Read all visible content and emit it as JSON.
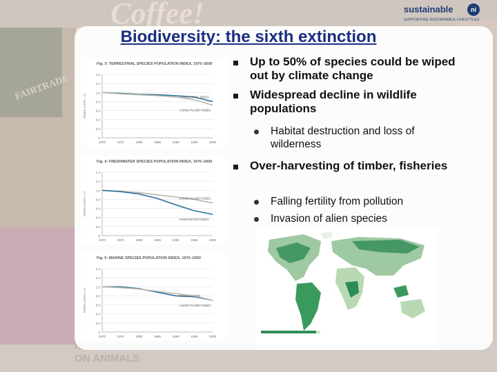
{
  "title": "Biodiversity: the sixth extinction",
  "logo": {
    "name": "sustainable",
    "mark": "ni",
    "tagline": "SUPPORTING SUSTAINABLE LIFESTYLES"
  },
  "background_words": {
    "coffee": "Coffee!",
    "fairtrade": "FAIRTRADE",
    "notested_1": "NOT TESTED",
    "notested_2": "ON ANIMALS"
  },
  "bullets": [
    {
      "level": 1,
      "text": "Up to 50% of species could be wiped out by climate change"
    },
    {
      "level": 1,
      "text": "Widespread decline in wildlife populations"
    },
    {
      "level": 2,
      "text": "Habitat destruction and loss of wilderness"
    },
    {
      "level": 1,
      "text": "Over-harvesting of timber, fisheries"
    },
    {
      "level": 2,
      "text": "Falling fertility from pollution"
    },
    {
      "level": 2,
      "text": "Invasion of alien species"
    }
  ],
  "chart_data": [
    {
      "type": "line",
      "title": "Fig. 3: TERRESTRIAL SPECIES POPULATION INDEX, 1970–2000",
      "ylabel": "INDEX (1970 = 1)",
      "ylim": [
        0,
        1.4
      ],
      "yticks": [
        "0",
        "0.2",
        "0.4",
        "0.6",
        "0.8",
        "1.0",
        "1.2",
        "1.4"
      ],
      "xticks": [
        "1970",
        "1975",
        "1980",
        "1985",
        "1990",
        "1995",
        "2000"
      ],
      "series": [
        {
          "name": "TERRESTRIAL INDEX",
          "color": "#2a6f9e",
          "x": [
            1970,
            1975,
            1980,
            1985,
            1990,
            1995,
            2000
          ],
          "y": [
            1.0,
            0.98,
            0.96,
            0.95,
            0.93,
            0.9,
            0.8
          ]
        },
        {
          "name": "LIVING PLANET INDEX",
          "color": "#b9b6a8",
          "x": [
            1970,
            1975,
            1980,
            1985,
            1990,
            1995,
            2000
          ],
          "y": [
            1.0,
            0.97,
            0.95,
            0.93,
            0.9,
            0.84,
            0.72
          ]
        }
      ]
    },
    {
      "type": "line",
      "title": "Fig. 4: FRESHWATER SPECIES POPULATION INDEX, 1970–2000",
      "ylabel": "INDEX (1970 = 1)",
      "ylim": [
        0,
        1.4
      ],
      "yticks": [
        "0",
        "0.2",
        "0.4",
        "0.6",
        "0.8",
        "1.0",
        "1.2",
        "1.4"
      ],
      "xticks": [
        "1970",
        "1975",
        "1980",
        "1985",
        "1990",
        "1995",
        "2000"
      ],
      "series": [
        {
          "name": "LIVING PLANET INDEX",
          "color": "#b9b6a8",
          "x": [
            1970,
            1975,
            1980,
            1985,
            1990,
            1995,
            2000
          ],
          "y": [
            1.0,
            0.98,
            0.95,
            0.9,
            0.85,
            0.8,
            0.72
          ]
        },
        {
          "name": "FRESHWATER INDEX",
          "color": "#2a6f9e",
          "x": [
            1970,
            1975,
            1980,
            1985,
            1990,
            1995,
            2000
          ],
          "y": [
            1.0,
            0.97,
            0.92,
            0.82,
            0.68,
            0.55,
            0.47
          ]
        }
      ],
      "annotations": [
        "VER",
        "IDEX",
        "DEX"
      ]
    },
    {
      "type": "line",
      "title": "Fig. 5: MARINE SPECIES POPULATION INDEX, 1970–2000",
      "ylabel": "INDEX (1970 = 1)",
      "ylim": [
        0,
        1.4
      ],
      "yticks": [
        "0",
        "0.2",
        "0.4",
        "0.6",
        "0.8",
        "1.0",
        "1.2",
        "1.4"
      ],
      "xticks": [
        "1970",
        "1975",
        "1980",
        "1985",
        "1990",
        "1995",
        "2000"
      ],
      "series": [
        {
          "name": "MARINE INDEX",
          "color": "#2a6f9e",
          "x": [
            1970,
            1975,
            1980,
            1985,
            1990,
            1995,
            2000
          ],
          "y": [
            1.0,
            1.0,
            0.96,
            0.88,
            0.8,
            0.78,
            0.7
          ]
        },
        {
          "name": "LIVING PLANET INDEX",
          "color": "#b9b6a8",
          "x": [
            1970,
            1975,
            1980,
            1985,
            1990,
            1995,
            2000
          ],
          "y": [
            1.0,
            0.98,
            0.95,
            0.9,
            0.85,
            0.8,
            0.7
          ]
        }
      ],
      "annotations": [
        "MARINE",
        "INDEX",
        "PLANET",
        "INDEX"
      ]
    }
  ]
}
